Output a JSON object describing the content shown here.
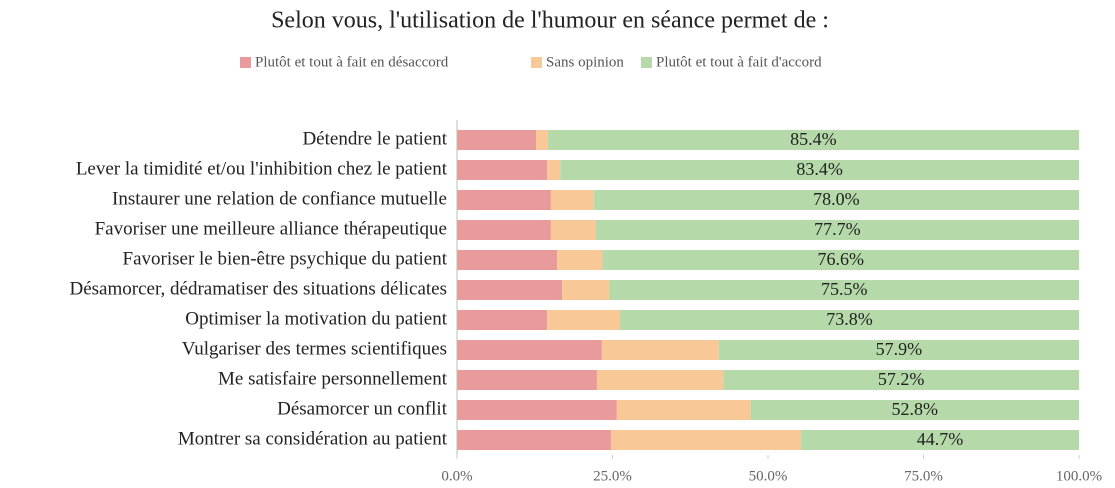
{
  "chart_data": {
    "type": "stacked-bar-horizontal",
    "title": "Selon vous, l'utilisation de l'humour en séance permet de :",
    "categories": [
      "Détendre le patient",
      "Lever la timidité et/ou l'inhibition chez le patient",
      "Instaurer une relation de confiance mutuelle",
      "Favoriser une meilleure alliance thérapeutique",
      "Favoriser le bien-être psychique du patient",
      "Désamorcer, dédramatiser des situations délicates",
      "Optimiser la motivation du patient",
      "Vulgariser des termes scientifiques",
      "Me satisfaire personnellement",
      "Désamorcer un conflit",
      "Montrer sa considération au patient"
    ],
    "series": [
      {
        "name": "Plutôt et tout à fait en désaccord",
        "color": "#e99a9a",
        "values": [
          12.7,
          14.5,
          15.1,
          15.1,
          16.1,
          16.9,
          14.5,
          23.3,
          22.5,
          25.7,
          24.8
        ]
      },
      {
        "name": "Sans opinion",
        "color": "#f8c997",
        "values": [
          1.9,
          2.1,
          6.9,
          7.2,
          7.3,
          7.6,
          11.7,
          18.8,
          20.3,
          21.5,
          30.5
        ]
      },
      {
        "name": "Plutôt et tout à fait d'accord",
        "color": "#b6d9a9",
        "values": [
          85.4,
          83.4,
          78.0,
          77.7,
          76.6,
          75.5,
          73.8,
          57.9,
          57.2,
          52.8,
          44.7
        ],
        "value_labels": [
          "85.4%",
          "83.4%",
          "78.0%",
          "77.7%",
          "76.6%",
          "75.5%",
          "73.8%",
          "57.9%",
          "57.2%",
          "52.8%",
          "44.7%"
        ]
      }
    ],
    "xlim": [
      0,
      100
    ],
    "xticks": [
      {
        "value": 0,
        "label": "0.0%"
      },
      {
        "value": 25,
        "label": "25.0%"
      },
      {
        "value": 50,
        "label": "50.0%"
      },
      {
        "value": 75,
        "label": "75.0%"
      },
      {
        "value": 100,
        "label": "100.0%"
      }
    ],
    "legend": "top"
  }
}
